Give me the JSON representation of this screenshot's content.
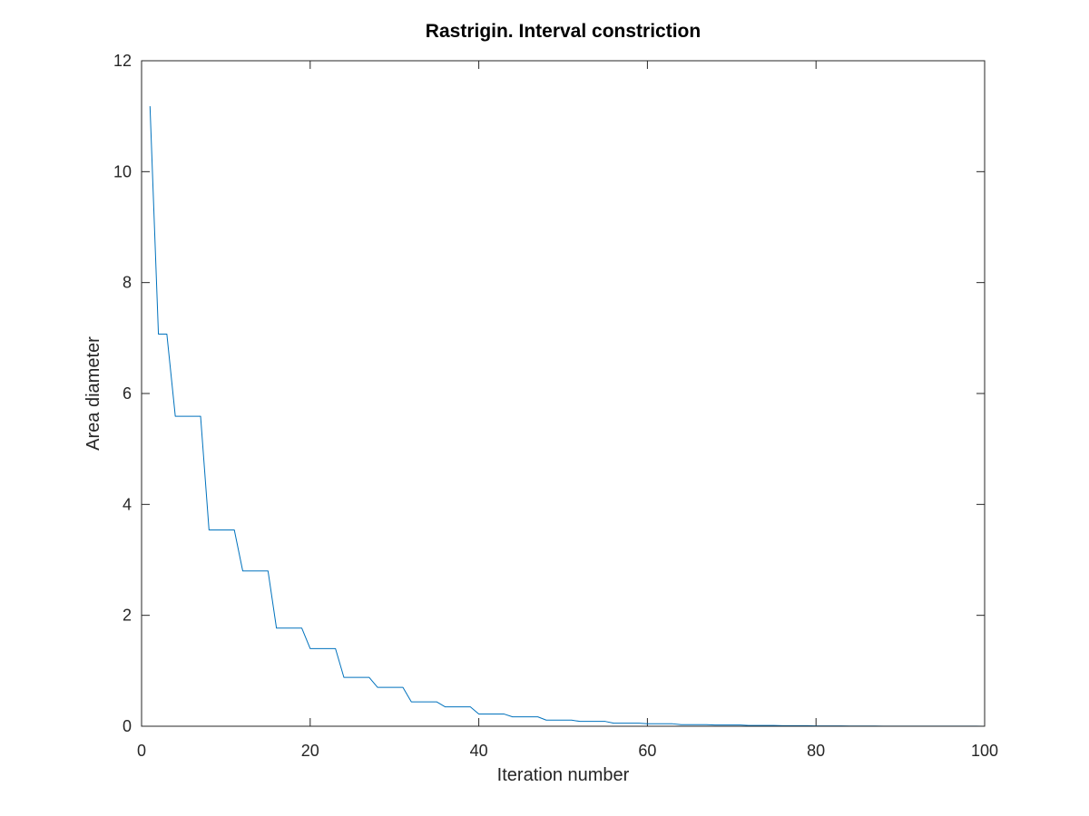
{
  "chart_data": {
    "type": "line",
    "title": "Rastrigin. Interval constriction",
    "xlabel": "Iteration number",
    "ylabel": "Area diameter",
    "xlim": [
      0,
      100
    ],
    "ylim": [
      0,
      12
    ],
    "xticks": [
      0,
      20,
      40,
      60,
      80,
      100
    ],
    "yticks": [
      0,
      2,
      4,
      6,
      8,
      10,
      12
    ],
    "xtick_labels": [
      "0",
      "20",
      "40",
      "60",
      "80",
      "100"
    ],
    "ytick_labels": [
      "0",
      "2",
      "4",
      "6",
      "8",
      "10",
      "12"
    ],
    "grid": false,
    "series": [
      {
        "color": "#0072bd",
        "x": [
          1,
          2,
          3,
          4,
          5,
          6,
          7,
          8,
          9,
          10,
          11,
          12,
          13,
          14,
          15,
          16,
          17,
          18,
          19,
          20,
          21,
          22,
          23,
          24,
          25,
          26,
          27,
          28,
          29,
          30,
          31,
          32,
          33,
          34,
          35,
          36,
          37,
          38,
          39,
          40,
          41,
          42,
          43,
          44,
          45,
          46,
          47,
          48,
          49,
          50,
          51,
          52,
          53,
          54,
          55,
          56,
          57,
          58,
          59,
          60,
          61,
          62,
          63,
          64,
          65,
          66,
          67,
          68,
          69,
          70,
          71,
          72,
          73,
          74,
          75,
          76,
          77,
          78,
          79,
          80,
          81,
          82,
          83,
          84,
          85,
          86,
          87,
          88,
          89,
          90,
          91,
          92,
          93,
          94,
          95,
          96,
          97,
          98,
          99,
          100
        ],
        "y": [
          11.18,
          7.07,
          7.07,
          5.59,
          5.59,
          5.59,
          5.59,
          3.54,
          3.54,
          3.54,
          3.54,
          2.8,
          2.8,
          2.8,
          2.8,
          1.77,
          1.77,
          1.77,
          1.77,
          1.4,
          1.4,
          1.4,
          1.4,
          0.88,
          0.88,
          0.88,
          0.88,
          0.7,
          0.7,
          0.7,
          0.7,
          0.44,
          0.44,
          0.44,
          0.44,
          0.35,
          0.35,
          0.35,
          0.35,
          0.22,
          0.22,
          0.22,
          0.22,
          0.17,
          0.17,
          0.17,
          0.17,
          0.11,
          0.11,
          0.11,
          0.11,
          0.087,
          0.087,
          0.087,
          0.087,
          0.055,
          0.055,
          0.055,
          0.055,
          0.044,
          0.044,
          0.044,
          0.044,
          0.028,
          0.028,
          0.028,
          0.028,
          0.022,
          0.022,
          0.022,
          0.022,
          0.014,
          0.014,
          0.014,
          0.014,
          0.011,
          0.011,
          0.011,
          0.011,
          0.007,
          0.007,
          0.007,
          0.007,
          0.005,
          0.005,
          0.005,
          0.005,
          0.003,
          0.003,
          0.003,
          0.003,
          0.003,
          0.003,
          0.003,
          0.003,
          0.002,
          0.002,
          0.002,
          0.002,
          0.001
        ]
      }
    ]
  }
}
